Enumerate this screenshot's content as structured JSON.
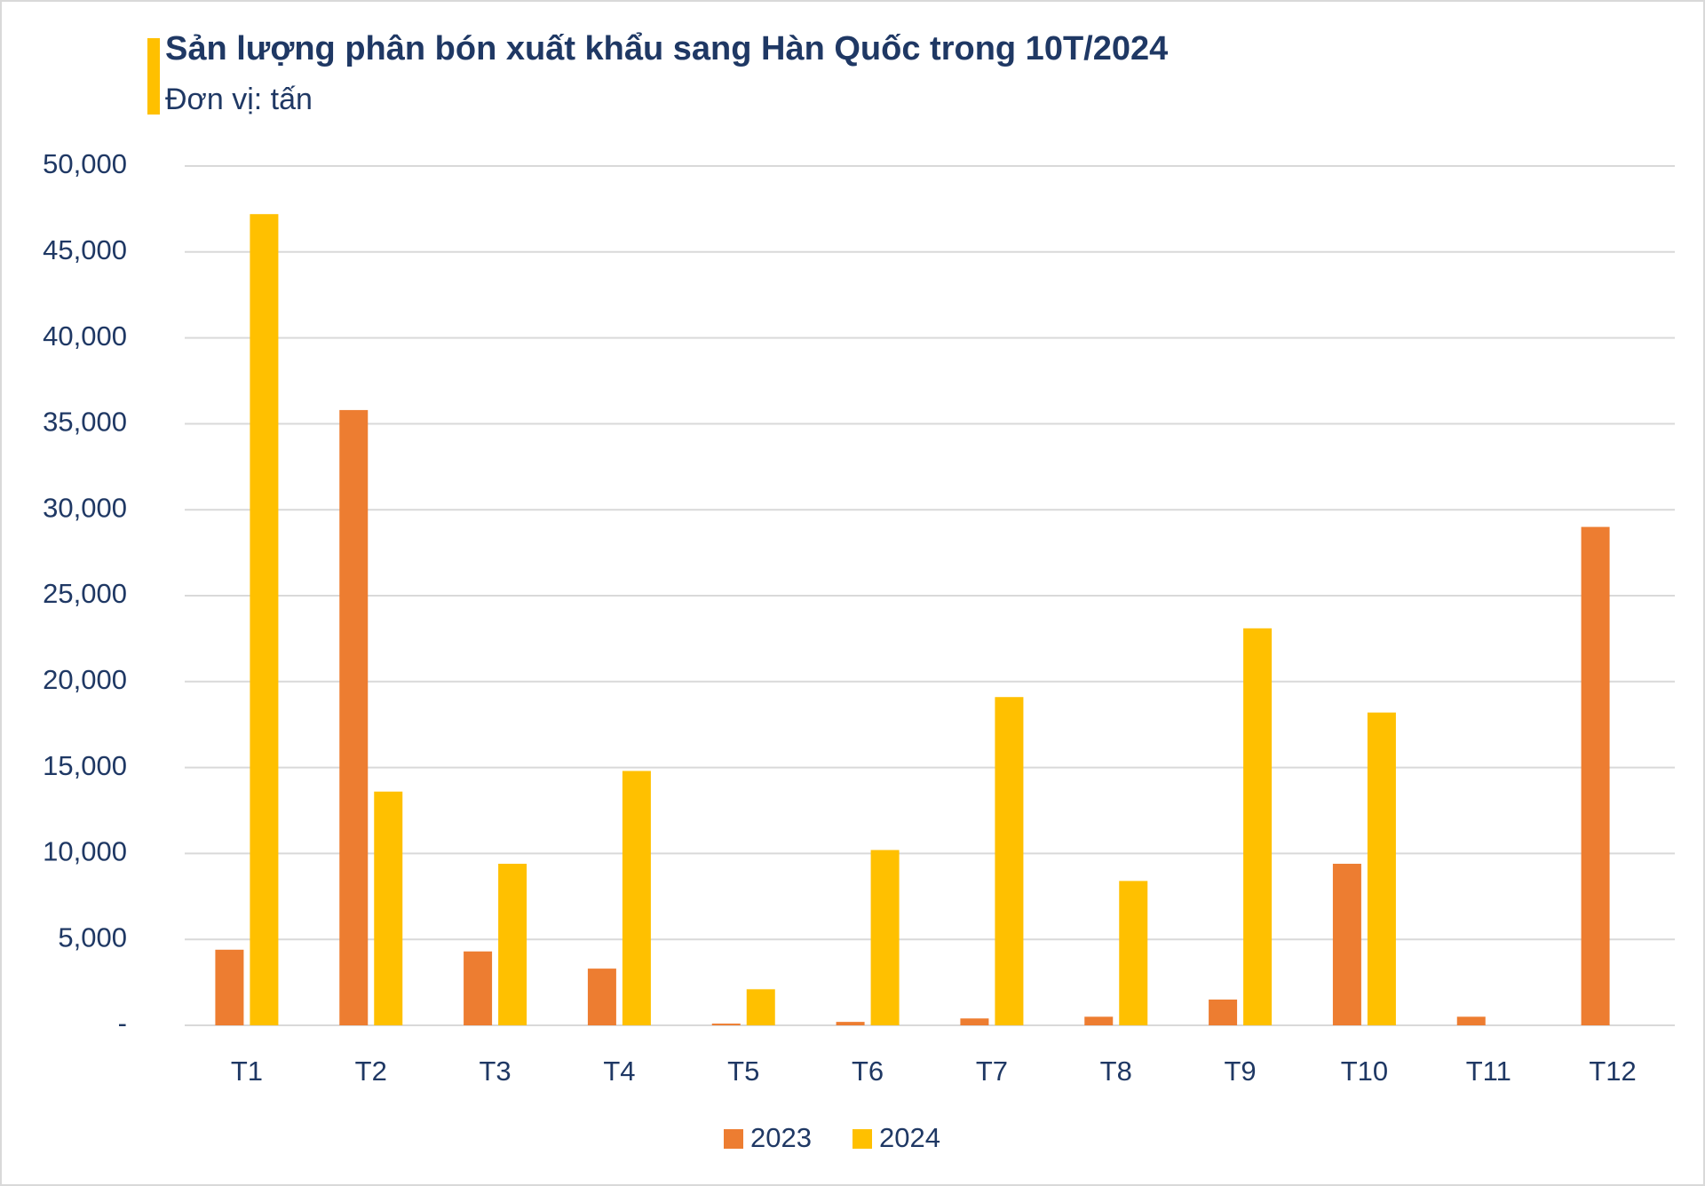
{
  "chart_data": {
    "type": "bar",
    "title": "Sản lượng phân bón xuất khẩu sang Hàn Quốc trong 10T/2024",
    "subtitle": "Đơn vị: tấn",
    "categories": [
      "T1",
      "T2",
      "T3",
      "T4",
      "T5",
      "T6",
      "T7",
      "T8",
      "T9",
      "T10",
      "T11",
      "T12"
    ],
    "series": [
      {
        "name": "2023",
        "color": "#ed7d31",
        "values": [
          4400,
          35800,
          4300,
          3300,
          100,
          200,
          400,
          500,
          1500,
          9400,
          500,
          29000
        ]
      },
      {
        "name": "2024",
        "color": "#ffc000",
        "values": [
          47200,
          13600,
          9400,
          14800,
          2100,
          10200,
          19100,
          8400,
          23100,
          18200,
          null,
          null
        ]
      }
    ],
    "ylim": [
      0,
      50000
    ],
    "yticks": [
      {
        "value": 0,
        "label": "-"
      },
      {
        "value": 5000,
        "label": "5,000"
      },
      {
        "value": 10000,
        "label": "10,000"
      },
      {
        "value": 15000,
        "label": "15,000"
      },
      {
        "value": 20000,
        "label": "20,000"
      },
      {
        "value": 25000,
        "label": "25,000"
      },
      {
        "value": 30000,
        "label": "30,000"
      },
      {
        "value": 35000,
        "label": "35,000"
      },
      {
        "value": 40000,
        "label": "40,000"
      },
      {
        "value": 45000,
        "label": "45,000"
      },
      {
        "value": 50000,
        "label": "50,000"
      }
    ],
    "grid": true,
    "legend": "bottom"
  }
}
